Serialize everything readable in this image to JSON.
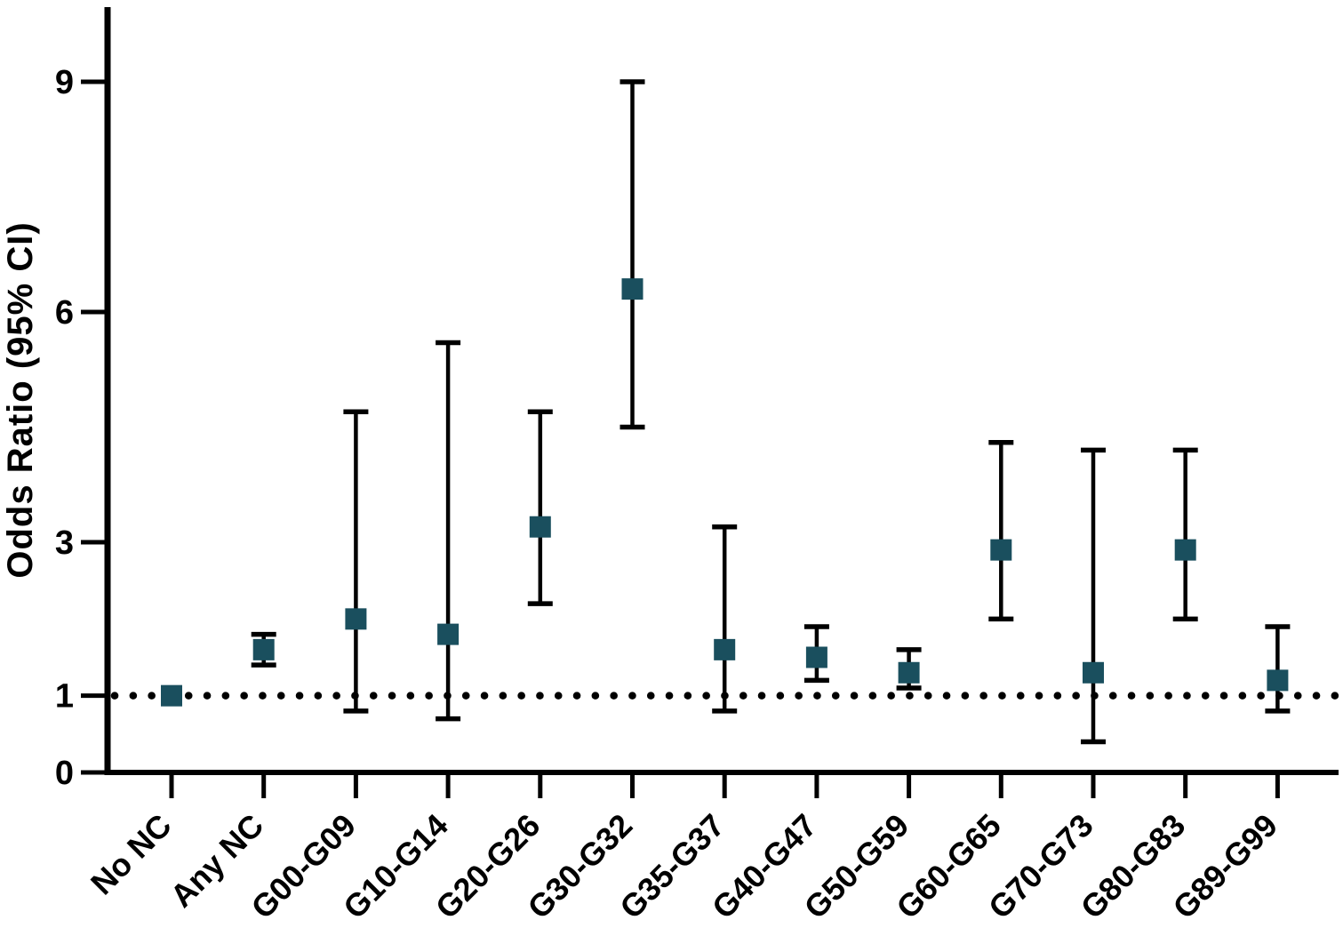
{
  "chart_data": {
    "type": "scatter",
    "subtype": "forest-errorbar",
    "title": "",
    "xlabel": "",
    "ylabel": "Odds Ratio (95% CI)",
    "ylim": [
      0,
      9.9
    ],
    "yticks": [
      0,
      1,
      3,
      6,
      9
    ],
    "grid": false,
    "legend": "none",
    "reference_line": 1,
    "reference_line_style": "dotted",
    "marker": "square",
    "marker_color": "#1A4F5E",
    "axis_color": "#000000",
    "categories": [
      "No NC",
      "Any NC",
      "G00-G09",
      "G10-G14",
      "G20-G26",
      "G30-G32",
      "G35-G37",
      "G40-G47",
      "G50-G59",
      "G60-G65",
      "G70-G73",
      "G80-G83",
      "G89-G99"
    ],
    "series": [
      {
        "name": "Odds Ratio",
        "points": [
          {
            "label": "No NC",
            "or": 1.0,
            "lo": null,
            "hi": null
          },
          {
            "label": "Any NC",
            "or": 1.6,
            "lo": 1.4,
            "hi": 1.8
          },
          {
            "label": "G00-G09",
            "or": 2.0,
            "lo": 0.8,
            "hi": 4.7
          },
          {
            "label": "G10-G14",
            "or": 1.8,
            "lo": 0.7,
            "hi": 5.6
          },
          {
            "label": "G20-G26",
            "or": 3.2,
            "lo": 2.2,
            "hi": 4.7
          },
          {
            "label": "G30-G32",
            "or": 6.3,
            "lo": 4.5,
            "hi": 9.0
          },
          {
            "label": "G35-G37",
            "or": 1.6,
            "lo": 0.8,
            "hi": 3.2
          },
          {
            "label": "G40-G47",
            "or": 1.5,
            "lo": 1.2,
            "hi": 1.9
          },
          {
            "label": "G50-G59",
            "or": 1.3,
            "lo": 1.1,
            "hi": 1.6
          },
          {
            "label": "G60-G65",
            "or": 2.9,
            "lo": 2.0,
            "hi": 4.3
          },
          {
            "label": "G70-G73",
            "or": 1.3,
            "lo": 0.4,
            "hi": 4.2
          },
          {
            "label": "G80-G83",
            "or": 2.9,
            "lo": 2.0,
            "hi": 4.2
          },
          {
            "label": "G89-G99",
            "or": 1.2,
            "lo": 0.8,
            "hi": 1.9
          }
        ]
      }
    ]
  }
}
